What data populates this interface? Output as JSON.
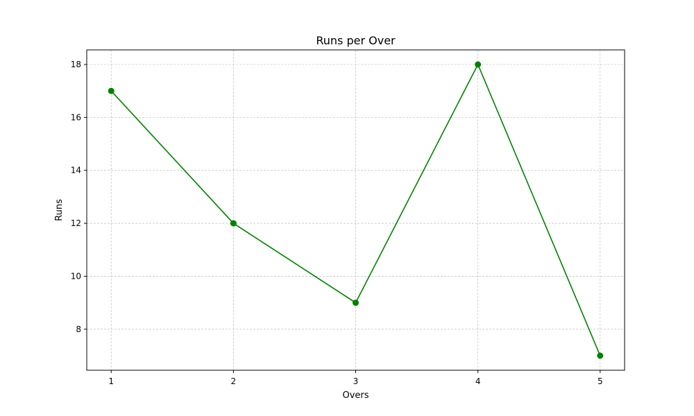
{
  "chart_data": {
    "type": "line",
    "title": "Runs per Over",
    "xlabel": "Overs",
    "ylabel": "Runs",
    "x": [
      1,
      2,
      3,
      4,
      5
    ],
    "series": [
      {
        "values": [
          17,
          12,
          9,
          18,
          7
        ],
        "color": "#008000",
        "marker": "circle"
      }
    ],
    "xticks": [
      "1",
      "2",
      "3",
      "4",
      "5"
    ],
    "yticks": [
      8,
      10,
      12,
      14,
      16,
      18
    ],
    "xlim": [
      0.8,
      5.2
    ],
    "ylim": [
      6.45,
      18.55
    ],
    "grid": true,
    "grid_style": "dashed",
    "grid_color": "#b0b0b0"
  }
}
